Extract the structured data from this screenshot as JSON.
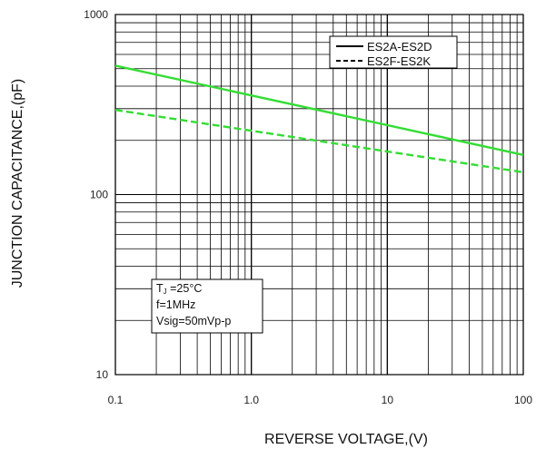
{
  "chart_data": {
    "type": "line",
    "x_scale": "log",
    "y_scale": "log",
    "xlim": [
      0.1,
      100
    ],
    "ylim": [
      10,
      1000
    ],
    "xlabel": "REVERSE VOLTAGE,(V)",
    "ylabel": "JUNCTION CAPACITANCE,(pF)",
    "x_ticks": [
      "0.1",
      "1.0",
      "10",
      "100"
    ],
    "y_ticks": [
      "10",
      "100",
      "1000"
    ],
    "grid": true,
    "legend_position": "top-right",
    "series": [
      {
        "name": "ES2A-ES2D",
        "style": "solid",
        "color": "#33dd33",
        "x": [
          0.1,
          100
        ],
        "y": [
          520,
          166
        ]
      },
      {
        "name": "ES2F-ES2K",
        "style": "dashed",
        "color": "#33dd33",
        "x": [
          0.1,
          100
        ],
        "y": [
          295,
          133
        ]
      }
    ],
    "annotation": {
      "tj_symbol": "T",
      "tj_subscript": "J",
      "tj_value": " =25°C",
      "line2": "f=1MHz",
      "line3": "Vsig=50mVp-p"
    }
  }
}
